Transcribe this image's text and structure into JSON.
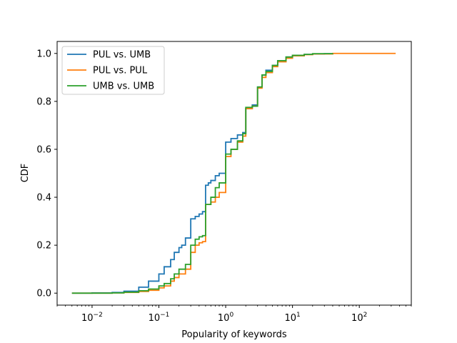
{
  "chart_data": {
    "type": "line",
    "title": "",
    "xlabel": "Popularity of keywords",
    "ylabel": "CDF",
    "xscale": "log",
    "xlim": [
      0.003,
      600
    ],
    "ylim": [
      -0.05,
      1.05
    ],
    "x_major_ticks": [
      0.01,
      0.1,
      1,
      10,
      100
    ],
    "x_tick_labels": [
      {
        "base": "10",
        "exp": "−2"
      },
      {
        "base": "10",
        "exp": "−1"
      },
      {
        "base": "10",
        "exp": "0"
      },
      {
        "base": "10",
        "exp": "1"
      },
      {
        "base": "10",
        "exp": "2"
      }
    ],
    "y_ticks": [
      0.0,
      0.2,
      0.4,
      0.6,
      0.8,
      1.0
    ],
    "y_tick_labels": [
      "0.0",
      "0.2",
      "0.4",
      "0.6",
      "0.8",
      "1.0"
    ],
    "grid": false,
    "legend_position": "top-left",
    "series": [
      {
        "name": "PUL vs. UMB",
        "color": "#1f77b4",
        "x": [
          0.005,
          0.01,
          0.02,
          0.03,
          0.05,
          0.07,
          0.1,
          0.12,
          0.15,
          0.17,
          0.2,
          0.22,
          0.25,
          0.25,
          0.3,
          0.3,
          0.35,
          0.4,
          0.45,
          0.5,
          0.5,
          0.55,
          0.6,
          0.7,
          0.8,
          1.0,
          1.0,
          1.2,
          1.5,
          1.8,
          2.0,
          2.0,
          2.5,
          3.0,
          3.0,
          3.5,
          3.5,
          4.0,
          5.0,
          6.0,
          8.0,
          10.0,
          15.0,
          20.0,
          30.0,
          40.0
        ],
        "y": [
          0.0,
          0.001,
          0.003,
          0.008,
          0.025,
          0.05,
          0.08,
          0.11,
          0.14,
          0.17,
          0.19,
          0.2,
          0.23,
          0.23,
          0.28,
          0.31,
          0.32,
          0.33,
          0.34,
          0.35,
          0.45,
          0.46,
          0.47,
          0.49,
          0.5,
          0.51,
          0.63,
          0.645,
          0.66,
          0.67,
          0.68,
          0.77,
          0.785,
          0.79,
          0.86,
          0.87,
          0.91,
          0.93,
          0.95,
          0.97,
          0.985,
          0.992,
          0.996,
          0.998,
          0.999,
          1.0
        ]
      },
      {
        "name": "PUL vs. PUL",
        "color": "#ff7f0e",
        "x": [
          0.005,
          0.01,
          0.02,
          0.03,
          0.05,
          0.07,
          0.1,
          0.12,
          0.15,
          0.17,
          0.2,
          0.25,
          0.3,
          0.35,
          0.4,
          0.45,
          0.5,
          0.5,
          0.6,
          0.7,
          0.8,
          1.0,
          1.0,
          1.2,
          1.5,
          1.8,
          2.0,
          2.0,
          2.5,
          3.0,
          3.0,
          3.5,
          3.5,
          4.0,
          5.0,
          6.0,
          8.0,
          10.0,
          15.0,
          20.0,
          40.0,
          100.0,
          350.0
        ],
        "y": [
          0.0,
          0.0,
          0.001,
          0.003,
          0.007,
          0.012,
          0.022,
          0.03,
          0.05,
          0.065,
          0.08,
          0.1,
          0.17,
          0.2,
          0.21,
          0.215,
          0.22,
          0.37,
          0.38,
          0.4,
          0.42,
          0.43,
          0.57,
          0.6,
          0.63,
          0.655,
          0.66,
          0.77,
          0.78,
          0.79,
          0.855,
          0.86,
          0.9,
          0.92,
          0.945,
          0.965,
          0.98,
          0.99,
          0.995,
          0.998,
          1.0,
          1.0,
          1.0
        ]
      },
      {
        "name": "UMB vs. UMB",
        "color": "#2ca02c",
        "x": [
          0.005,
          0.01,
          0.02,
          0.03,
          0.05,
          0.07,
          0.1,
          0.12,
          0.15,
          0.17,
          0.2,
          0.25,
          0.3,
          0.35,
          0.4,
          0.45,
          0.5,
          0.5,
          0.6,
          0.7,
          0.8,
          1.0,
          1.0,
          1.2,
          1.5,
          1.8,
          2.0,
          2.0,
          2.5,
          3.0,
          3.0,
          3.5,
          3.5,
          4.0,
          5.0,
          6.0,
          8.0,
          10.0,
          15.0,
          20.0,
          40.0
        ],
        "y": [
          0.0,
          0.0,
          0.001,
          0.004,
          0.01,
          0.017,
          0.03,
          0.04,
          0.06,
          0.08,
          0.1,
          0.12,
          0.2,
          0.225,
          0.235,
          0.24,
          0.245,
          0.37,
          0.4,
          0.44,
          0.46,
          0.48,
          0.58,
          0.6,
          0.635,
          0.665,
          0.67,
          0.775,
          0.78,
          0.79,
          0.86,
          0.865,
          0.91,
          0.925,
          0.95,
          0.97,
          0.985,
          0.992,
          0.996,
          0.999,
          1.0
        ]
      }
    ]
  }
}
